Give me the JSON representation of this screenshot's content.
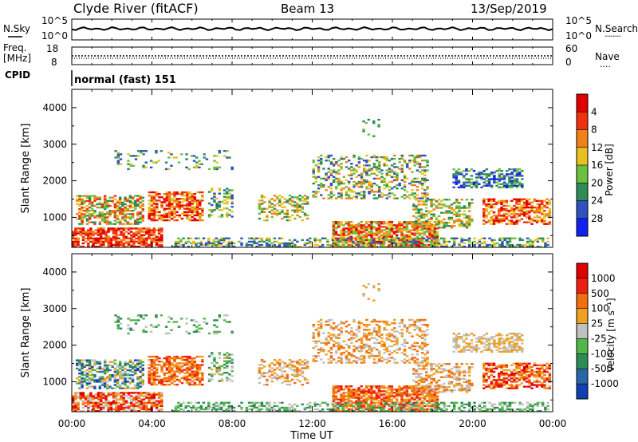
{
  "header": {
    "station": "Clyde River (fitACF)",
    "beam": "Beam 13",
    "date": "13/Sep/2019"
  },
  "noise_panel": {
    "left_label": "N.Sky",
    "right_label": "N.Search",
    "right_dots": "........",
    "left_ticks": [
      "10^5",
      "10^0"
    ],
    "right_ticks": [
      "10^5",
      "10^0"
    ]
  },
  "freq_panel": {
    "left_label_1": "Freq.",
    "left_label_2": "[MHz]",
    "right_label": "Nave",
    "right_dots": "....",
    "left_ticks": [
      "18",
      "8"
    ],
    "right_ticks": [
      "60",
      "0"
    ]
  },
  "cpid": {
    "label": "CPID",
    "value": "normal (fast) 151"
  },
  "chart_data": [
    {
      "type": "heatmap",
      "name": "power-panel",
      "ylabel": "Slant Range [km]",
      "xlabel": "",
      "ylim": [
        180,
        4500
      ],
      "xlim": [
        0,
        24
      ],
      "y_ticks": [
        1000,
        2000,
        3000,
        4000
      ],
      "x_ticks": [
        0,
        4,
        8,
        12,
        16,
        20,
        24
      ],
      "colorbar": {
        "label": "Power [dB]",
        "ticks": [
          "4",
          "8",
          "12",
          "16",
          "20",
          "24",
          "28"
        ],
        "colors": [
          "#1020f0",
          "#3050c0",
          "#2e8b57",
          "#6cc040",
          "#e8c020",
          "#f08018",
          "#f03010",
          "#e00000"
        ]
      }
    },
    {
      "type": "heatmap",
      "name": "velocity-panel",
      "ylabel": "Slant Range [km]",
      "xlabel": "Time UT",
      "ylim": [
        180,
        4500
      ],
      "xlim": [
        0,
        24
      ],
      "y_ticks": [
        1000,
        2000,
        3000,
        4000
      ],
      "x_ticks": [
        0,
        4,
        8,
        12,
        16,
        20,
        24
      ],
      "x_tick_labels": [
        "00:00",
        "04:00",
        "08:00",
        "12:00",
        "16:00",
        "20:00",
        "00:00"
      ],
      "colorbar": {
        "label": "Velocity [m s⁻¹]",
        "ticks": [
          "1000",
          "500",
          "100",
          "25",
          "-25",
          "-100",
          "-500",
          "-1000"
        ],
        "colors": [
          "#1040b0",
          "#2868a8",
          "#2e8b57",
          "#50b848",
          "#c0c0c0",
          "#f0a020",
          "#f07010",
          "#f02010",
          "#e00000"
        ]
      }
    }
  ],
  "colors": {
    "axis": "#000000",
    "background": "#ffffff"
  }
}
